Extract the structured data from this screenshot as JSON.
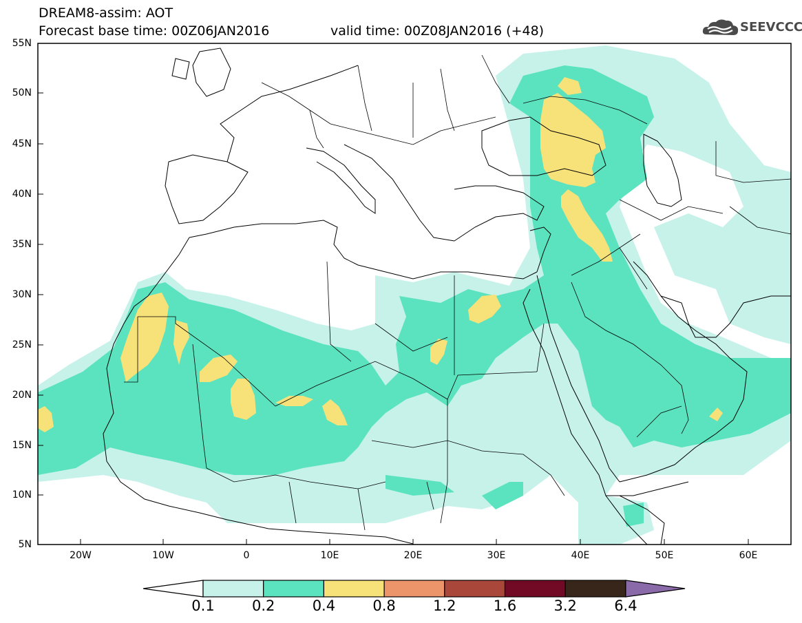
{
  "header": {
    "title": "DREAM8-assim: AOT",
    "base_time": "Forecast base time: 00Z06JAN2016",
    "valid_time": "valid time: 00Z08JAN2016 (+48)"
  },
  "logo": {
    "text": "SEEVCCC",
    "icon": "cloud-icon"
  },
  "map": {
    "lat_labels": [
      "55N",
      "50N",
      "45N",
      "40N",
      "35N",
      "30N",
      "25N",
      "20N",
      "15N",
      "10N",
      "5N"
    ],
    "lon_labels": [
      "20W",
      "10W",
      "0",
      "10E",
      "20E",
      "30E",
      "40E",
      "50E",
      "60E"
    ]
  },
  "colorbar": {
    "labels": [
      "0.1",
      "0.2",
      "0.4",
      "0.8",
      "1.2",
      "1.6",
      "3.2",
      "6.4"
    ],
    "colors": [
      "#ffffff",
      "#c7f2ea",
      "#5be3bf",
      "#f7e27a",
      "#ec946a",
      "#a9483a",
      "#720a26",
      "#38261a",
      "#8a6aa8"
    ]
  },
  "colors": {
    "c1": "#c7f2ea",
    "c2": "#5be3bf",
    "c3": "#f7e27a"
  }
}
